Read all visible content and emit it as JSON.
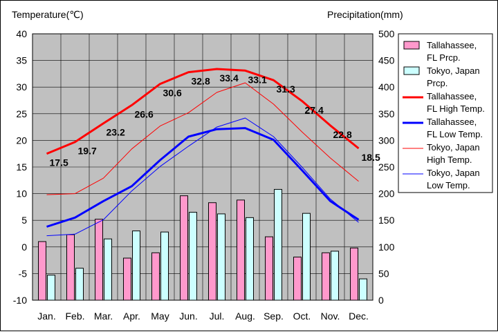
{
  "chart_data": {
    "type": "bar+line",
    "categories": [
      "Jan.",
      "Feb.",
      "Mar.",
      "Apr.",
      "May",
      "Jun.",
      "Jul.",
      "Aug.",
      "Sep.",
      "Oct.",
      "Nov.",
      "Dec."
    ],
    "left_axis": {
      "label": "Temperature(℃)",
      "min": -10,
      "max": 40,
      "ticks": [
        40,
        35,
        30,
        25,
        20,
        15,
        10,
        5,
        0,
        -5,
        -10
      ]
    },
    "right_axis": {
      "label": "Precipitation(mm)",
      "min": 0,
      "max": 500,
      "ticks": [
        500,
        450,
        400,
        350,
        300,
        250,
        200,
        150,
        100,
        50,
        0
      ]
    },
    "grid": true,
    "legend_position": "right",
    "bar_series": [
      {
        "name": "Tallahassee,\nFL Prcp.",
        "color": "#ff99cc",
        "values": [
          110,
          123,
          152,
          79,
          89,
          196,
          183,
          188,
          119,
          81,
          89,
          98
        ]
      },
      {
        "name": "Tokyo, Japan\nPrcp.",
        "color": "#ccffff",
        "values": [
          47,
          60,
          115,
          130,
          128,
          165,
          162,
          155,
          208,
          163,
          92,
          40
        ]
      }
    ],
    "line_series": [
      {
        "name": "Tallahassee,\nFL High Temp.",
        "color": "#ff0000",
        "width": 3,
        "values": [
          17.5,
          19.7,
          23.2,
          26.6,
          30.6,
          32.8,
          33.4,
          33.1,
          31.3,
          27.4,
          22.8,
          18.5
        ],
        "labels": [
          "17.5",
          "19.7",
          "23.2",
          "26.6",
          "30.6",
          "32.8",
          "33.4",
          "33.1",
          "31.3",
          "27.4",
          "22.8",
          "18.5"
        ]
      },
      {
        "name": "Tallahassee,\nFL Low Temp.",
        "color": "#0000ff",
        "width": 3,
        "values": [
          3.8,
          5.5,
          8.6,
          11.4,
          16.3,
          20.7,
          22.1,
          22.3,
          20.1,
          14.4,
          8.6,
          5.1
        ]
      },
      {
        "name": "Tokyo, Japan\nHigh Temp.",
        "color": "#ff0000",
        "width": 1,
        "values": [
          9.8,
          10.0,
          12.9,
          18.4,
          22.7,
          25.2,
          29.0,
          30.8,
          26.8,
          21.6,
          16.7,
          12.3
        ]
      },
      {
        "name": "Tokyo, Japan\nLow Temp.",
        "color": "#0000ff",
        "width": 1,
        "values": [
          2.1,
          2.4,
          5.1,
          10.5,
          15.1,
          18.9,
          22.5,
          24.2,
          20.7,
          15.0,
          9.0,
          4.6
        ]
      }
    ]
  }
}
